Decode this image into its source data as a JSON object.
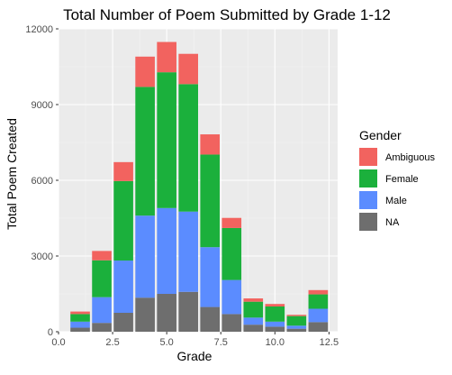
{
  "chart_data": {
    "type": "bar",
    "stacked": true,
    "title": "Total Number of Poem Submitted by Grade 1-12",
    "xlabel": "Grade",
    "ylabel": "Total Poem Created",
    "x": [
      1,
      2,
      3,
      4,
      5,
      6,
      7,
      8,
      9,
      10,
      11,
      12
    ],
    "xlim": [
      0,
      12.9
    ],
    "ylim": [
      0,
      12000
    ],
    "xticks": [
      0,
      2.5,
      5,
      7.5,
      10,
      12.5
    ],
    "xtick_labels": [
      "0.0",
      "2.5",
      "5.0",
      "7.5",
      "10.0",
      "12.5"
    ],
    "yticks": [
      0,
      3000,
      6000,
      9000,
      12000
    ],
    "ytick_labels": [
      "0",
      "3000",
      "6000",
      "9000",
      "12000"
    ],
    "grid": true,
    "background": "#ebebeb",
    "legend": {
      "title": "Gender",
      "position": "right"
    },
    "series": [
      {
        "name": "NA",
        "color": "#6e6e6e",
        "values": [
          160,
          350,
          750,
          1350,
          1500,
          1580,
          980,
          700,
          280,
          200,
          120,
          380
        ]
      },
      {
        "name": "Male",
        "color": "#5b8cff",
        "values": [
          240,
          1020,
          2070,
          3250,
          3400,
          3180,
          2370,
          1350,
          280,
          200,
          120,
          530
        ]
      },
      {
        "name": "Female",
        "color": "#1bb03c",
        "values": [
          300,
          1460,
          3150,
          5100,
          5380,
          5050,
          3670,
          2060,
          630,
          600,
          380,
          570
        ]
      },
      {
        "name": "Ambiguous",
        "color": "#f2635f",
        "values": [
          100,
          370,
          750,
          1200,
          1200,
          1200,
          800,
          400,
          130,
          100,
          50,
          170
        ]
      }
    ]
  }
}
